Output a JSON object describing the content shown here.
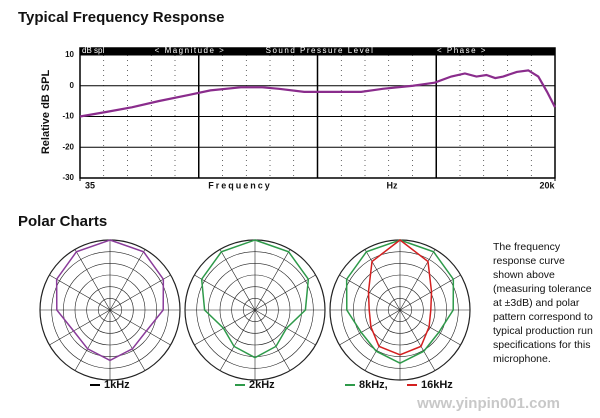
{
  "chart_data": [
    {
      "type": "line",
      "title": "Typical Frequency Response",
      "ylabel": "Relative dB SPL",
      "unit_label": "dB spl",
      "banner": [
        "< Magnitude >",
        "Sound Pressure Level",
        "< Phase >"
      ],
      "xlabel": "Frequency",
      "xunit": "Hz",
      "xscale": "log",
      "x": [
        35,
        50,
        70,
        100,
        150,
        200,
        300,
        400,
        500,
        700,
        1000,
        1500,
        2000,
        3000,
        4000,
        5000,
        6000,
        7000,
        8000,
        9000,
        10000,
        12000,
        14000,
        16000,
        18000,
        20000
      ],
      "xlim": [
        35,
        20000
      ],
      "xticks": [
        35,
        {
          "value": 20000,
          "label": "20k"
        }
      ],
      "ylim": [
        -30,
        10
      ],
      "yticks": [
        10,
        0,
        -10,
        -20,
        -30
      ],
      "grid": true,
      "series": [
        {
          "color": "#8a2c8c",
          "values": [
            -10,
            -8.5,
            -7,
            -5,
            -3,
            -1.5,
            -0.5,
            -0.5,
            -1,
            -2,
            -2,
            -2,
            -1,
            0,
            1,
            3,
            4,
            3,
            3.5,
            2.5,
            3,
            4.5,
            5,
            3,
            -2,
            -7
          ]
        }
      ]
    },
    {
      "type": "polar",
      "title": "Polar Charts",
      "rlim": [
        -25,
        0
      ],
      "x": [
        0,
        30,
        60,
        90,
        120,
        150,
        180,
        210,
        240,
        270,
        300,
        330
      ],
      "series": [
        {
          "name": "1kHz",
          "color": "#8a3c9a",
          "values": [
            0,
            -1,
            -3,
            -6,
            -10,
            -9,
            -7,
            -9,
            -10,
            -6,
            -3,
            -1
          ]
        }
      ]
    },
    {
      "type": "polar",
      "rlim": [
        -25,
        0
      ],
      "x": [
        0,
        30,
        60,
        90,
        120,
        150,
        180,
        210,
        240,
        270,
        300,
        330
      ],
      "series": [
        {
          "name": "2kHz",
          "color": "#2e9a4a",
          "values": [
            0,
            -1,
            -3,
            -7,
            -12,
            -10,
            -8,
            -10,
            -12,
            -7,
            -3,
            -1
          ]
        }
      ]
    },
    {
      "type": "polar",
      "rlim": [
        -25,
        0
      ],
      "x": [
        0,
        30,
        60,
        90,
        120,
        150,
        180,
        210,
        240,
        270,
        300,
        330
      ],
      "series": [
        {
          "name": "8kHz,",
          "color": "#2e9a4a",
          "values": [
            0,
            -1,
            -3,
            -6,
            -9,
            -8,
            -6,
            -8,
            -9,
            -6,
            -3,
            -1
          ]
        },
        {
          "name": "16kHz",
          "color": "#d42020",
          "values": [
            0,
            -5,
            -12,
            -14,
            -13,
            -10,
            -9,
            -10,
            -13,
            -14,
            -12,
            -5
          ]
        }
      ]
    }
  ],
  "note": "The frequency response curve shown above (measuring tolerance at ±3dB) and polar pattern correspond to typical production run specifications for this microphone.",
  "watermark": "www.yinpin001.com"
}
